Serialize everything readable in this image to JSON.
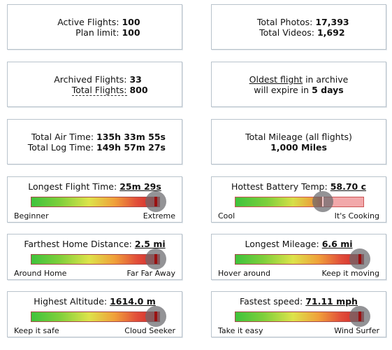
{
  "cards": {
    "active": {
      "label1": "Active Flights:",
      "value1": "100",
      "label2": "Plan limit:",
      "value2": "100"
    },
    "media": {
      "label1": "Total Photos:",
      "value1": "17,393",
      "label2": "Total Videos:",
      "value2": "1,692"
    },
    "archived": {
      "label1": "Archived Flights:",
      "value1": "33",
      "label2": "Total Flights:",
      "value2": "800"
    },
    "oldest": {
      "link": "Oldest flight",
      "text1": " in archive",
      "text2": "will expire in ",
      "value": "5 days"
    },
    "airtime": {
      "label1": "Total Air Time:",
      "value1": "135h 33m 55s",
      "label2": "Total Log Time:",
      "value2": "149h 57m 27s"
    },
    "mileage": {
      "line1": "Total Mileage (all flights)",
      "line2": "1,000 Miles"
    }
  },
  "meters": [
    {
      "title": "Longest Flight Time:",
      "value": "25m 29s",
      "min_label": "Beginner",
      "max_label": "Extreme",
      "level": 0.97
    },
    {
      "title": "Hottest Battery Temp:",
      "value": "58.70 c",
      "min_label": "Cool",
      "max_label": "It's Cooking",
      "level": 0.68
    },
    {
      "title": "Farthest Home Distance:",
      "value": "2.5 mi",
      "min_label": "Around Home",
      "max_label": "Far Far Away",
      "level": 0.97
    },
    {
      "title": "Longest Mileage:",
      "value": "6.6 mi",
      "min_label": "Hover around",
      "max_label": "Keep it moving",
      "level": 0.97
    },
    {
      "title": "Highest Altitude:",
      "value": "1614.0 m",
      "min_label": "Keep it safe",
      "max_label": "Cloud Seeker",
      "level": 0.97
    },
    {
      "title": "Fastest speed:",
      "value": "71.11 mph",
      "min_label": "Take it easy",
      "max_label": "Wind Surfer",
      "level": 0.97
    }
  ]
}
